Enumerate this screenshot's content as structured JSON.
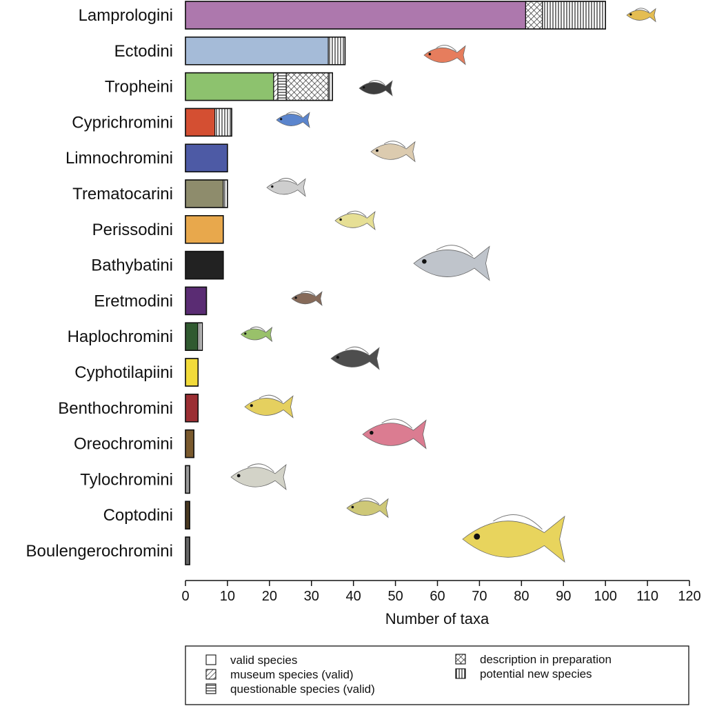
{
  "chart_data": {
    "type": "bar",
    "orientation": "horizontal",
    "stacked": true,
    "xlabel": "Number of taxa",
    "xlim": [
      0,
      120
    ],
    "xticks": [
      0,
      10,
      20,
      30,
      40,
      50,
      60,
      70,
      80,
      90,
      100,
      110,
      120
    ],
    "grid": false,
    "segment_types": [
      {
        "key": "valid",
        "label": "valid species",
        "pattern": "solid"
      },
      {
        "key": "museum",
        "label": "museum species (valid)",
        "pattern": "diagonal"
      },
      {
        "key": "questionable",
        "label": "questionable species (valid)",
        "pattern": "horizontal"
      },
      {
        "key": "description",
        "label": "description in preparation",
        "pattern": "crosshatch"
      },
      {
        "key": "potential",
        "label": "potential new species",
        "pattern": "vertical"
      }
    ],
    "categories": [
      {
        "name": "Lamprologini",
        "color": "#AD78AD",
        "valid": 81,
        "museum": 0,
        "questionable": 0,
        "description": 4,
        "potential": 15,
        "fish_icon": "lamprologini-fish-icon"
      },
      {
        "name": "Ectodini",
        "color": "#A5BBD8",
        "valid": 34,
        "museum": 0,
        "questionable": 0,
        "description": 0,
        "potential": 4,
        "fish_icon": "ectodini-fish-icon"
      },
      {
        "name": "Tropheini",
        "color": "#8DC26E",
        "valid": 21,
        "museum": 1,
        "questionable": 2,
        "description": 10,
        "potential": 1,
        "fish_icon": "tropheini-fish-icon"
      },
      {
        "name": "Cyprichromini",
        "color": "#D44F32",
        "valid": 7,
        "museum": 0,
        "questionable": 0,
        "description": 0,
        "potential": 4,
        "fish_icon": "cyprichromini-fish-icon"
      },
      {
        "name": "Limnochromini",
        "color": "#4D5AA5",
        "valid": 10,
        "museum": 0,
        "questionable": 0,
        "description": 0,
        "potential": 0,
        "fish_icon": "limnochromini-fish-icon"
      },
      {
        "name": "Trematocarini",
        "color": "#8E8C6C",
        "valid": 9,
        "museum": 0,
        "questionable": 0,
        "description": 0,
        "potential": 1,
        "fish_icon": "trematocarini-fish-icon"
      },
      {
        "name": "Perissodini",
        "color": "#E8A84C",
        "valid": 9,
        "museum": 0,
        "questionable": 0,
        "description": 0,
        "potential": 0,
        "fish_icon": "perissodini-fish-icon"
      },
      {
        "name": "Bathybatini",
        "color": "#222222",
        "valid": 9,
        "museum": 0,
        "questionable": 0,
        "description": 0,
        "potential": 0,
        "fish_icon": "bathybatini-fish-icon"
      },
      {
        "name": "Eretmodini",
        "color": "#5A2C73",
        "valid": 5,
        "museum": 0,
        "questionable": 0,
        "description": 0,
        "potential": 0,
        "fish_icon": "eretmodini-fish-icon"
      },
      {
        "name": "Haplochromini",
        "color": "#305A30",
        "valid": 3,
        "museum": 0,
        "questionable": 0,
        "description": 0,
        "potential": 1,
        "fish_icon": "haplochromini-fish-icon"
      },
      {
        "name": "Cyphotilapiini",
        "color": "#F2DB3A",
        "valid": 3,
        "museum": 0,
        "questionable": 0,
        "description": 0,
        "potential": 0,
        "fish_icon": "cyphotilapiini-fish-icon"
      },
      {
        "name": "Benthochromini",
        "color": "#9B2E33",
        "valid": 3,
        "museum": 0,
        "questionable": 0,
        "description": 0,
        "potential": 0,
        "fish_icon": "benthochromini-fish-icon"
      },
      {
        "name": "Oreochromini",
        "color": "#7A5A2E",
        "valid": 2,
        "museum": 0,
        "questionable": 0,
        "description": 0,
        "potential": 0,
        "fish_icon": "oreochromini-fish-icon"
      },
      {
        "name": "Tylochromini",
        "color": "#9A9A9A",
        "valid": 1,
        "museum": 0,
        "questionable": 0,
        "description": 0,
        "potential": 0,
        "fish_icon": "tylochromini-fish-icon"
      },
      {
        "name": "Coptodini",
        "color": "#4A3A22",
        "valid": 1,
        "museum": 0,
        "questionable": 0,
        "description": 0,
        "potential": 0,
        "fish_icon": "coptodini-fish-icon"
      },
      {
        "name": "Boulengerochromini",
        "color": "#666666",
        "valid": 1,
        "museum": 0,
        "questionable": 0,
        "description": 0,
        "potential": 0,
        "fish_icon": "boulengerochromini-fish-icon"
      }
    ]
  },
  "legend": {
    "items": [
      {
        "label": "valid species",
        "pattern": "solid"
      },
      {
        "label": "museum species (valid)",
        "pattern": "diagonal"
      },
      {
        "label": "questionable species (valid)",
        "pattern": "horizontal"
      },
      {
        "label": "description in preparation",
        "pattern": "crosshatch"
      },
      {
        "label": "potential new species",
        "pattern": "vertical"
      }
    ]
  }
}
